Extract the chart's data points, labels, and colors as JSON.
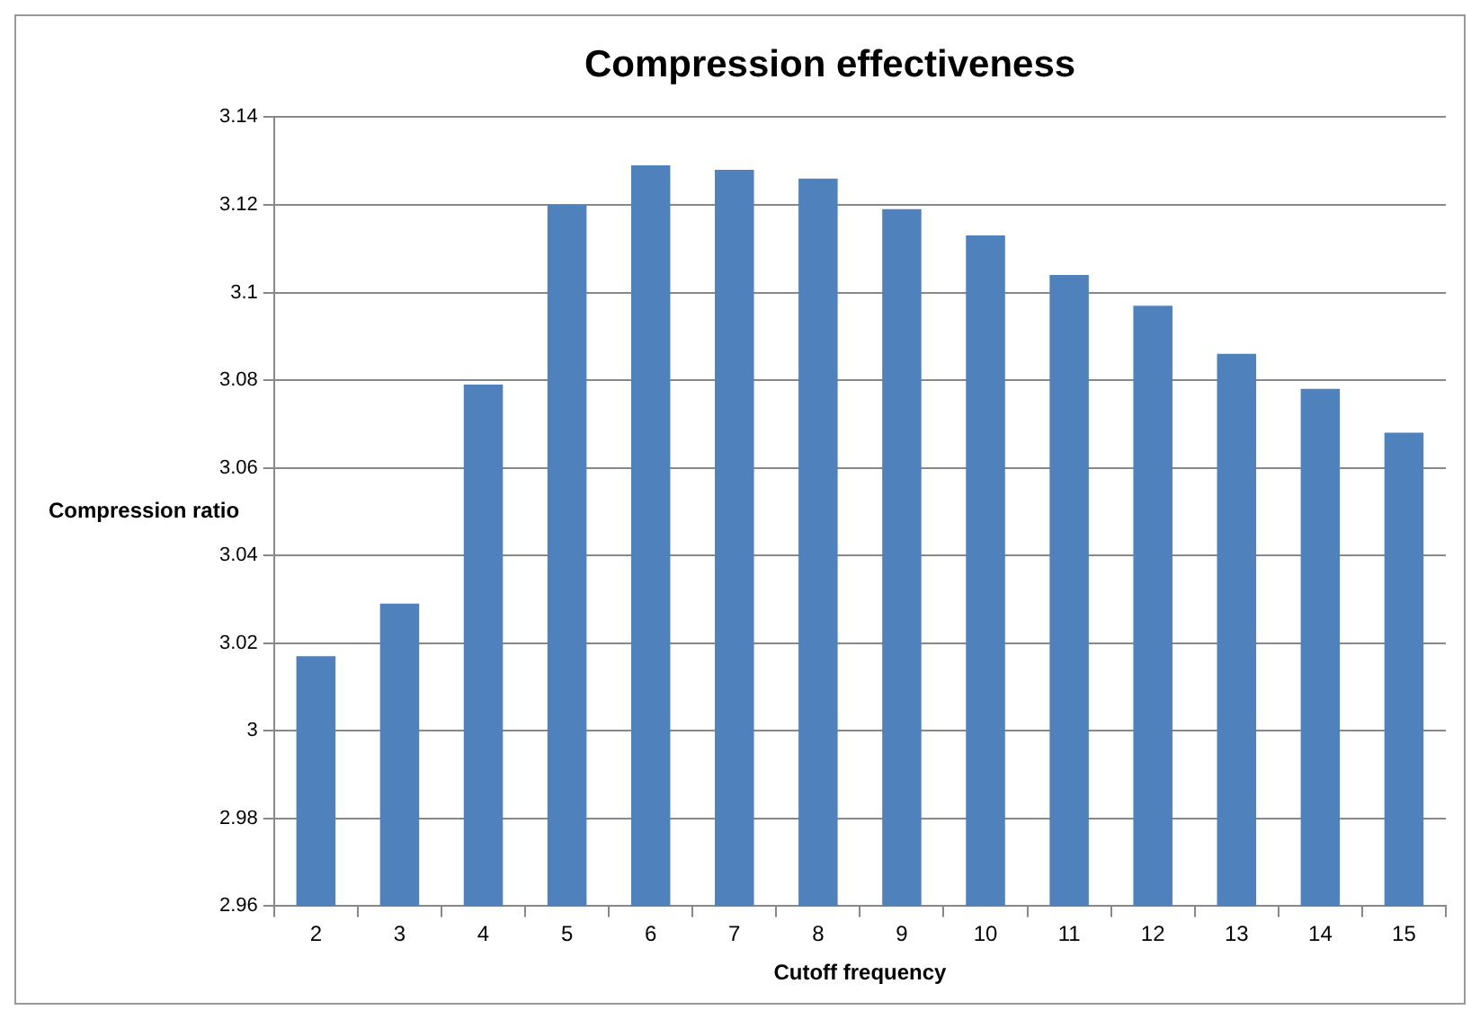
{
  "chart_data": {
    "type": "bar",
    "title": "Compression effectiveness",
    "xlabel": "Cutoff frequency",
    "ylabel": "Compression ratio",
    "categories": [
      "2",
      "3",
      "4",
      "5",
      "6",
      "7",
      "8",
      "9",
      "10",
      "11",
      "12",
      "13",
      "14",
      "15"
    ],
    "values": [
      3.017,
      3.029,
      3.079,
      3.12,
      3.129,
      3.128,
      3.126,
      3.119,
      3.113,
      3.104,
      3.097,
      3.086,
      3.078,
      3.068
    ],
    "color": "#4f81bd",
    "ylim": [
      2.96,
      3.14
    ],
    "yticks": [
      2.96,
      2.98,
      3,
      3.02,
      3.04,
      3.06,
      3.08,
      3.1,
      3.12,
      3.14
    ],
    "grid": "y"
  }
}
